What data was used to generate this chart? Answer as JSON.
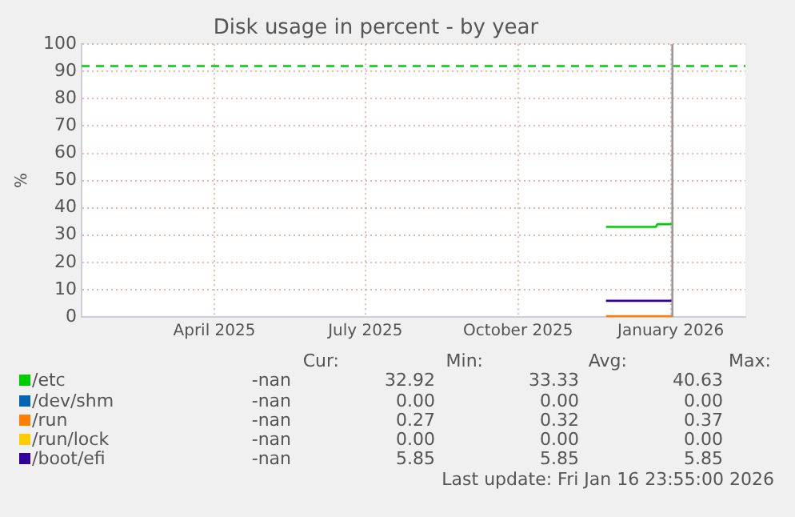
{
  "chart_data": {
    "type": "line",
    "title": "Disk usage in percent - by year",
    "ylabel": "%",
    "xlim": [
      "2025-01-25",
      "2026-03-01"
    ],
    "xticks": [
      {
        "value": "2025-04-15",
        "label": "April 2025"
      },
      {
        "value": "2025-07-15",
        "label": "July 2025"
      },
      {
        "value": "2025-10-15",
        "label": "October 2025"
      },
      {
        "value": "2026-01-15",
        "label": "January 2026"
      }
    ],
    "ylim": [
      0,
      100
    ],
    "yticks": [
      0,
      10,
      20,
      30,
      40,
      50,
      60,
      70,
      80,
      90,
      100
    ],
    "grid": true,
    "legend": "bottom",
    "marker": "none",
    "line_style": "solid",
    "series": [
      {
        "name": "/etc",
        "color": "#00cc00",
        "x": [
          "2025-12-07",
          "2026-01-06",
          "2026-01-07",
          "2026-01-16"
        ],
        "values": [
          33,
          33,
          34,
          34
        ]
      },
      {
        "name": "/dev/shm",
        "color": "#0066b3"
      },
      {
        "name": "/run",
        "color": "#ff8000",
        "x": [
          "2025-12-07",
          "2026-01-16"
        ],
        "values": [
          0.3,
          0.3
        ]
      },
      {
        "name": "/run/lock",
        "color": "#ffcc00"
      },
      {
        "name": "/boot/efi",
        "color": "#330099",
        "x": [
          "2025-12-07",
          "2026-01-16"
        ],
        "values": [
          5.9,
          5.9
        ]
      }
    ],
    "ref_lines": [
      {
        "axis": "y",
        "value": 92,
        "label": null,
        "color": "#00cc00",
        "line_style": "dashed"
      },
      {
        "axis": "x",
        "value": "2026-01-16",
        "label": null,
        "color": "#999999",
        "line_style": "solid"
      }
    ],
    "annotations": [
      "Cur:",
      "Min:",
      "Avg:",
      "Max:",
      "-nan",
      "32.92",
      "33.33",
      "40.63",
      "-nan",
      "0.00",
      "0.00",
      "0.00",
      "-nan",
      "0.27",
      "0.32",
      "0.37",
      "-nan",
      "0.00",
      "0.00",
      "0.00",
      "-nan",
      "5.85",
      "5.85",
      "5.85",
      "Last update: Fri Jan 16 23:55:00 2026"
    ]
  }
}
